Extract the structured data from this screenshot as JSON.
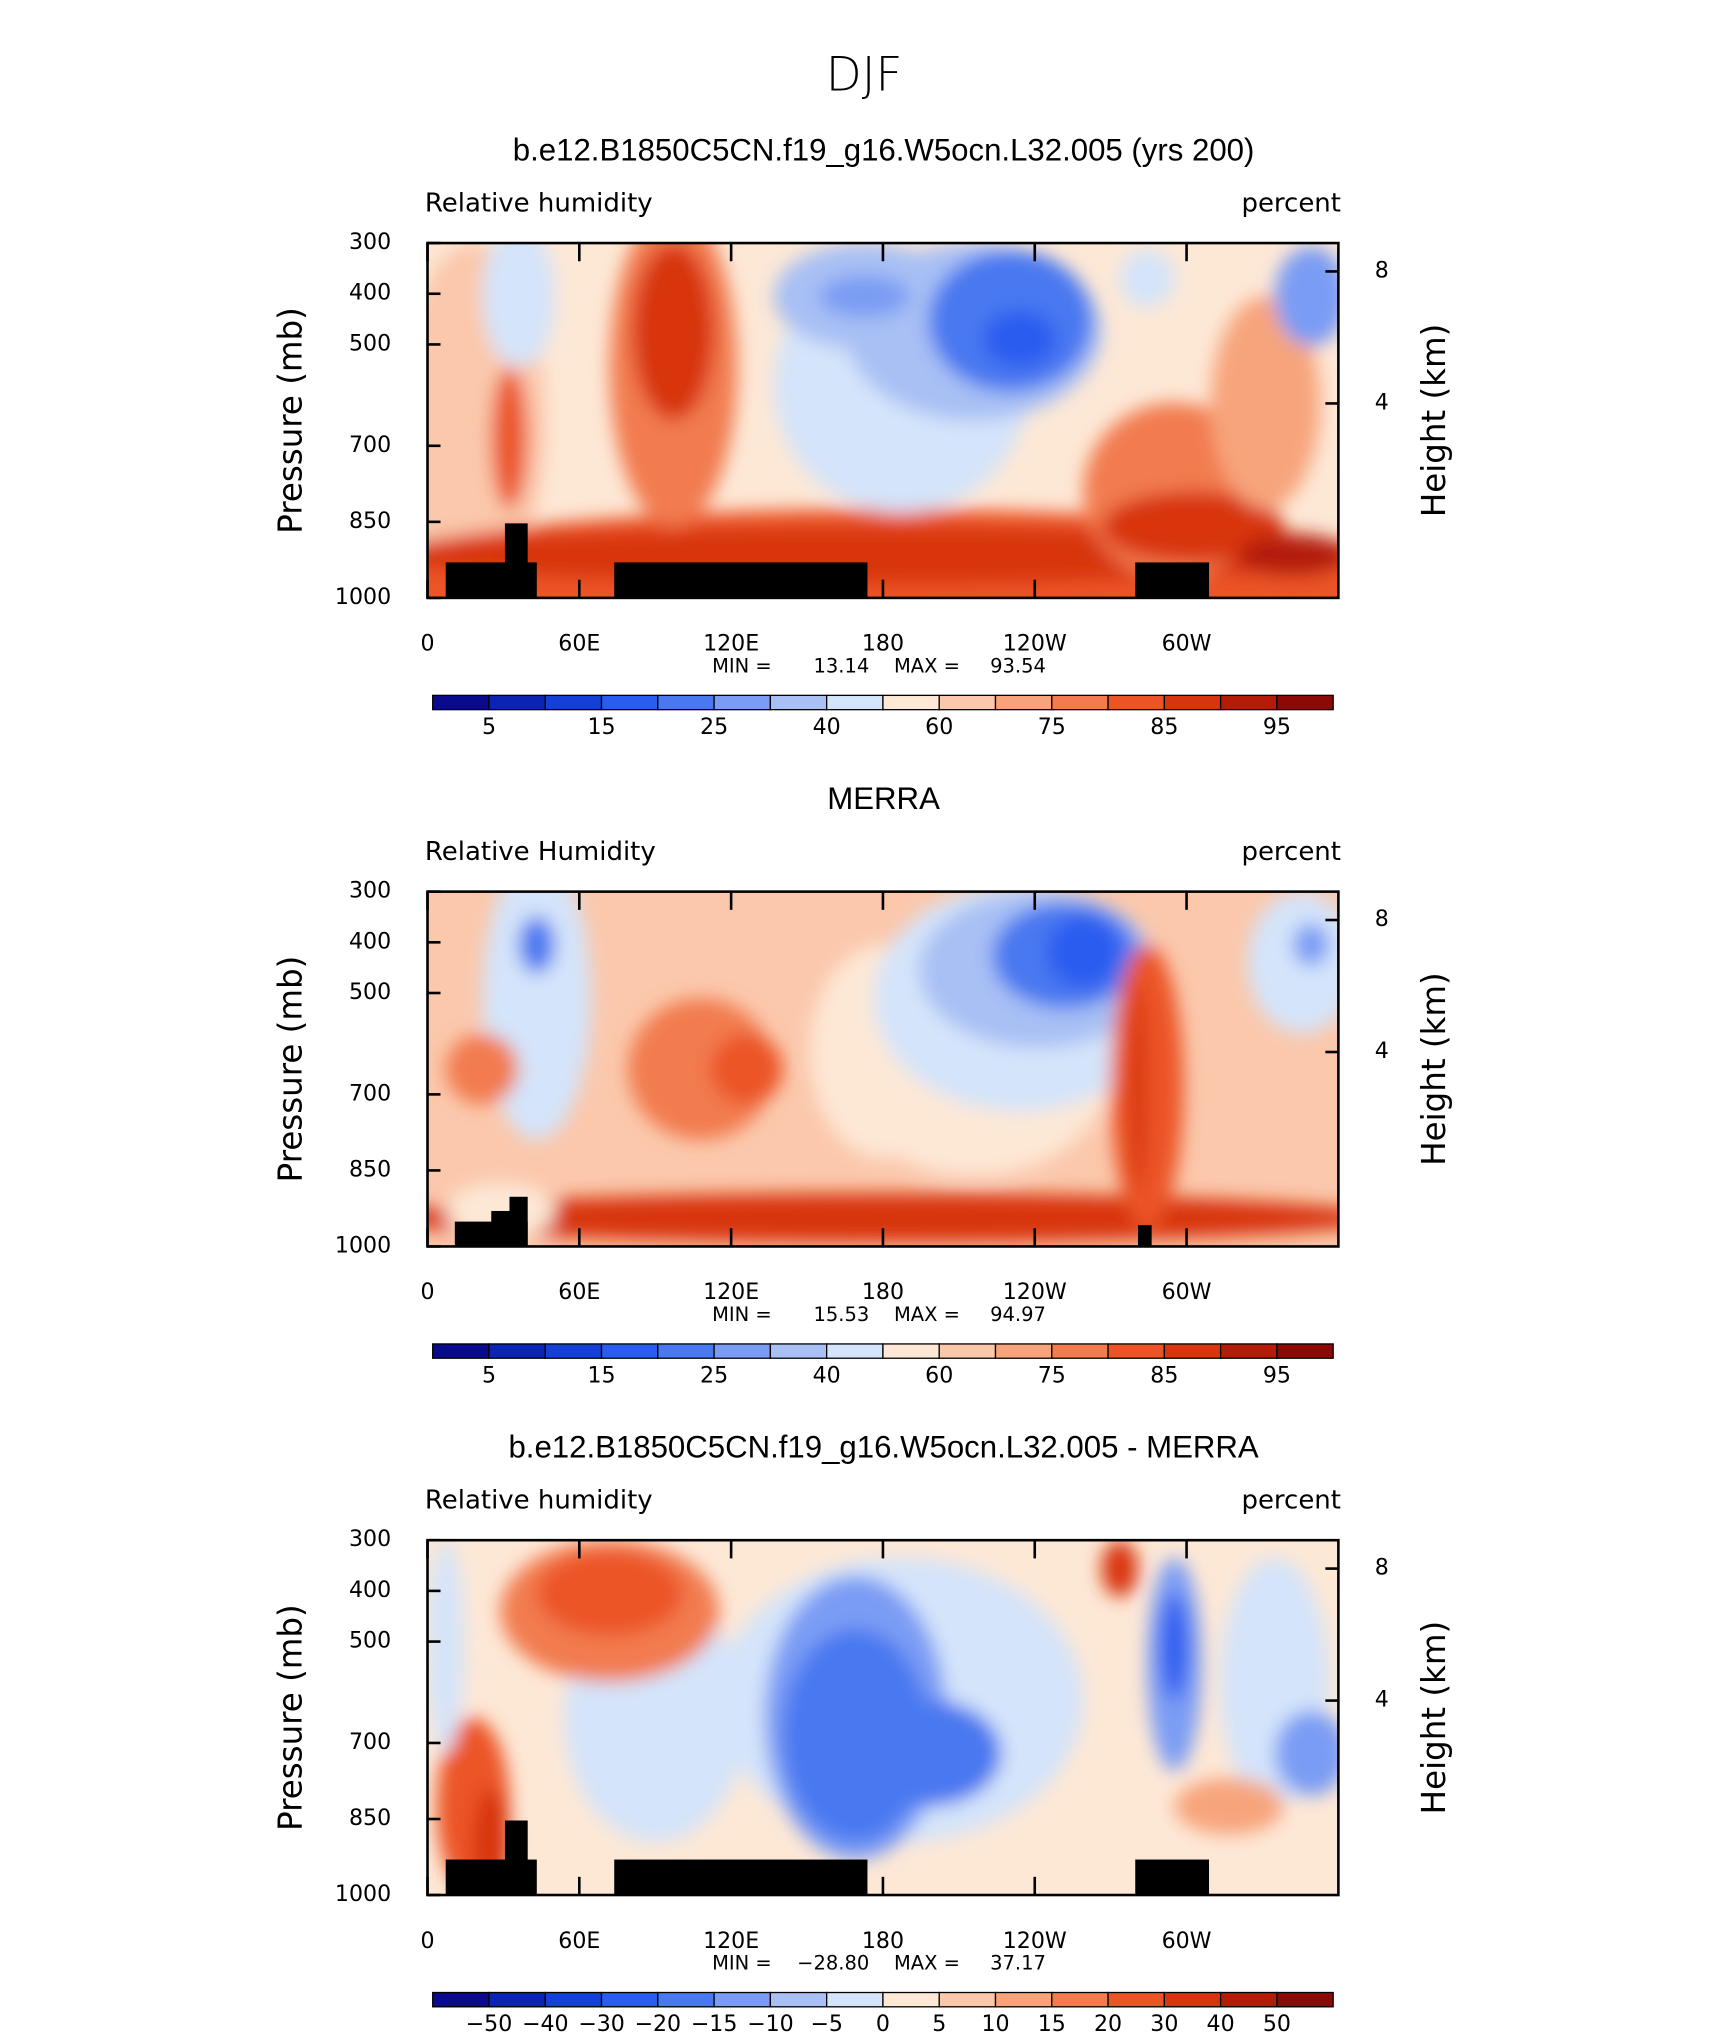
{
  "title": "DJF",
  "chart_data": [
    {
      "type": "contour",
      "title": "b.e12.B1850C5CN.f19_g16.W5ocn.L32.005 (yrs 200)",
      "left_label": "Relative humidity",
      "units": "percent",
      "y_label": "Pressure (mb)",
      "y2_label": "Height (km)",
      "xlim": [
        0,
        360
      ],
      "xticks": [
        0,
        {
          "value": 60,
          "label": "60E"
        },
        {
          "value": 120,
          "label": "120E"
        },
        180,
        {
          "value": 240,
          "label": "120W"
        },
        {
          "value": 300,
          "label": "60W"
        }
      ],
      "ylim": [
        1000,
        300
      ],
      "yticks": [
        300,
        400,
        500,
        700,
        850,
        1000
      ],
      "y2ticks": [
        8,
        4
      ],
      "min_label": "MIN =",
      "min": 13.14,
      "max_label": "MAX =",
      "max": 93.54,
      "colorbar": {
        "levels": [
          5,
          null,
          15,
          null,
          25,
          null,
          40,
          null,
          60,
          null,
          75,
          null,
          85,
          null,
          95
        ],
        "colors": [
          "#0a0a8c",
          "#0c24b4",
          "#1440d8",
          "#2a5cf0",
          "#4a78f0",
          "#7a9cf4",
          "#a8c0f4",
          "#d4e4fa",
          "#fde8d6",
          "#fbc8ac",
          "#f7a47c",
          "#f27c50",
          "#ec5428",
          "#d8340f",
          "#b41c08",
          "#8c0a06"
        ]
      }
    },
    {
      "type": "contour",
      "title": "MERRA",
      "left_label": "Relative Humidity",
      "units": "percent",
      "y_label": "Pressure (mb)",
      "y2_label": "Height (km)",
      "xlim": [
        0,
        360
      ],
      "xticks": [
        0,
        {
          "value": 60,
          "label": "60E"
        },
        {
          "value": 120,
          "label": "120E"
        },
        180,
        {
          "value": 240,
          "label": "120W"
        },
        {
          "value": 300,
          "label": "60W"
        }
      ],
      "ylim": [
        1000,
        300
      ],
      "yticks": [
        300,
        400,
        500,
        700,
        850,
        1000
      ],
      "y2ticks": [
        8,
        4
      ],
      "min_label": "MIN =",
      "min": 15.53,
      "max_label": "MAX =",
      "max": 94.97,
      "colorbar": {
        "levels": [
          5,
          null,
          15,
          null,
          25,
          null,
          40,
          null,
          60,
          null,
          75,
          null,
          85,
          null,
          95
        ],
        "colors": [
          "#0a0a8c",
          "#0c24b4",
          "#1440d8",
          "#2a5cf0",
          "#4a78f0",
          "#7a9cf4",
          "#a8c0f4",
          "#d4e4fa",
          "#fde8d6",
          "#fbc8ac",
          "#f7a47c",
          "#f27c50",
          "#ec5428",
          "#d8340f",
          "#b41c08",
          "#8c0a06"
        ]
      }
    },
    {
      "type": "contour",
      "title": "b.e12.B1850C5CN.f19_g16.W5ocn.L32.005 - MERRA",
      "left_label": "Relative humidity",
      "units": "percent",
      "y_label": "Pressure (mb)",
      "y2_label": "Height (km)",
      "xlim": [
        0,
        360
      ],
      "xticks": [
        0,
        {
          "value": 60,
          "label": "60E"
        },
        {
          "value": 120,
          "label": "120E"
        },
        180,
        {
          "value": 240,
          "label": "120W"
        },
        {
          "value": 300,
          "label": "60W"
        }
      ],
      "ylim": [
        1000,
        300
      ],
      "yticks": [
        300,
        400,
        500,
        700,
        850,
        1000
      ],
      "y2ticks": [
        8,
        4
      ],
      "min_label": "MIN =",
      "min": {
        "value": -28.8,
        "label": "−28.80"
      },
      "max_label": "MAX =",
      "max": 37.17,
      "colorbar": {
        "levels": [
          {
            "value": -50,
            "label": "−50"
          },
          {
            "value": -40,
            "label": "−40"
          },
          {
            "value": -30,
            "label": "−30"
          },
          {
            "value": -20,
            "label": "−20"
          },
          {
            "value": -15,
            "label": "−15"
          },
          {
            "value": -10,
            "label": "−10"
          },
          {
            "value": -5,
            "label": "−5"
          },
          0,
          5,
          10,
          15,
          20,
          30,
          40,
          50
        ],
        "colors": [
          "#0a0a8c",
          "#0c24b4",
          "#1440d8",
          "#2a5cf0",
          "#4a78f0",
          "#7a9cf4",
          "#a8c0f4",
          "#d4e4fa",
          "#fde8d6",
          "#fbc8ac",
          "#f7a47c",
          "#f27c50",
          "#ec5428",
          "#d8340f",
          "#b41c08",
          "#8c0a06"
        ]
      }
    }
  ]
}
